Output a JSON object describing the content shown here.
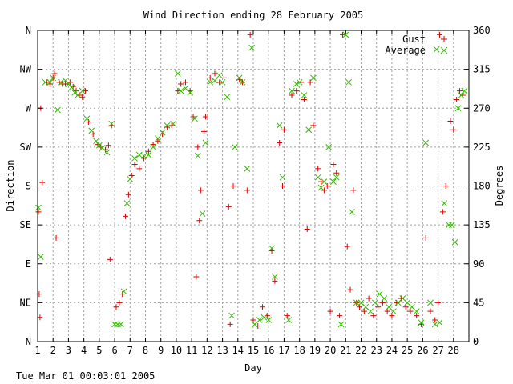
{
  "chart_data": {
    "type": "scatter",
    "title": "Wind Direction ending 28 February 2005",
    "xlabel": "Day",
    "ylabel_left": "Direction",
    "ylabel_right": "Degrees",
    "xlim": [
      1,
      29
    ],
    "ylim": [
      0,
      360
    ],
    "x_ticks": [
      "1",
      "2",
      "3",
      "4",
      "5",
      "6",
      "7",
      "8",
      "9",
      "10",
      "11",
      "12",
      "13",
      "14",
      "15",
      "16",
      "17",
      "18",
      "19",
      "20",
      "21",
      "22",
      "23",
      "24",
      "25",
      "26",
      "27",
      "28"
    ],
    "left_ticks": [
      {
        "label": "N",
        "deg": 0
      },
      {
        "label": "NE",
        "deg": 45
      },
      {
        "label": "E",
        "deg": 90
      },
      {
        "label": "SE",
        "deg": 135
      },
      {
        "label": "S",
        "deg": 180
      },
      {
        "label": "SW",
        "deg": 225
      },
      {
        "label": "W",
        "deg": 270
      },
      {
        "label": "NW",
        "deg": 315
      },
      {
        "label": "N",
        "deg": 360
      }
    ],
    "right_ticks": [
      "0",
      "45",
      "90",
      "135",
      "180",
      "225",
      "270",
      "315",
      "360"
    ],
    "grid": true,
    "legend_position": "top-right",
    "series": [
      {
        "name": "Gust",
        "marker": "plus",
        "color": "#dd0000",
        "points": [
          [
            1.05,
            150
          ],
          [
            1.1,
            55
          ],
          [
            1.15,
            28
          ],
          [
            1.2,
            270
          ],
          [
            1.3,
            184
          ],
          [
            1.6,
            300
          ],
          [
            1.8,
            298
          ],
          [
            2.0,
            305
          ],
          [
            2.1,
            310
          ],
          [
            2.2,
            120
          ],
          [
            2.4,
            300
          ],
          [
            2.6,
            298
          ],
          [
            2.8,
            298
          ],
          [
            3.1,
            300
          ],
          [
            3.3,
            295
          ],
          [
            3.5,
            290
          ],
          [
            3.7,
            285
          ],
          [
            3.9,
            283
          ],
          [
            4.1,
            290
          ],
          [
            4.3,
            254
          ],
          [
            4.6,
            240
          ],
          [
            4.9,
            228
          ],
          [
            5.1,
            225
          ],
          [
            5.4,
            222
          ],
          [
            5.6,
            227
          ],
          [
            5.8,
            250
          ],
          [
            5.7,
            95
          ],
          [
            6.1,
            40
          ],
          [
            6.3,
            45
          ],
          [
            6.5,
            55
          ],
          [
            6.7,
            145
          ],
          [
            6.9,
            170
          ],
          [
            7.1,
            192
          ],
          [
            7.3,
            205
          ],
          [
            7.6,
            200
          ],
          [
            7.9,
            212
          ],
          [
            8.2,
            220
          ],
          [
            8.5,
            228
          ],
          [
            8.8,
            232
          ],
          [
            9.1,
            240
          ],
          [
            9.4,
            248
          ],
          [
            9.7,
            250
          ],
          [
            10.1,
            290
          ],
          [
            10.3,
            298
          ],
          [
            10.6,
            300
          ],
          [
            10.9,
            290
          ],
          [
            11.1,
            260
          ],
          [
            11.3,
            75
          ],
          [
            11.4,
            225
          ],
          [
            11.5,
            140
          ],
          [
            11.6,
            175
          ],
          [
            11.8,
            243
          ],
          [
            11.9,
            260
          ],
          [
            12.2,
            305
          ],
          [
            12.5,
            310
          ],
          [
            12.8,
            300
          ],
          [
            13.1,
            305
          ],
          [
            13.4,
            156
          ],
          [
            13.5,
            20
          ],
          [
            13.7,
            180
          ],
          [
            14.1,
            303
          ],
          [
            14.3,
            300
          ],
          [
            14.6,
            175
          ],
          [
            14.8,
            355
          ],
          [
            15.0,
            25
          ],
          [
            15.3,
            18
          ],
          [
            15.6,
            40
          ],
          [
            15.9,
            30
          ],
          [
            16.2,
            105
          ],
          [
            16.4,
            70
          ],
          [
            16.7,
            230
          ],
          [
            16.9,
            180
          ],
          [
            17.0,
            245
          ],
          [
            17.2,
            30
          ],
          [
            17.5,
            285
          ],
          [
            17.8,
            290
          ],
          [
            18.1,
            300
          ],
          [
            18.3,
            280
          ],
          [
            18.5,
            130
          ],
          [
            18.7,
            300
          ],
          [
            18.9,
            250
          ],
          [
            19.2,
            200
          ],
          [
            19.4,
            185
          ],
          [
            19.6,
            175
          ],
          [
            19.8,
            180
          ],
          [
            20.0,
            35
          ],
          [
            20.2,
            205
          ],
          [
            20.4,
            195
          ],
          [
            20.6,
            30
          ],
          [
            20.8,
            355
          ],
          [
            21.1,
            110
          ],
          [
            21.3,
            60
          ],
          [
            21.5,
            175
          ],
          [
            21.7,
            45
          ],
          [
            21.9,
            40
          ],
          [
            22.2,
            35
          ],
          [
            22.5,
            50
          ],
          [
            22.8,
            30
          ],
          [
            23.1,
            40
          ],
          [
            23.4,
            45
          ],
          [
            23.7,
            35
          ],
          [
            24.0,
            30
          ],
          [
            24.3,
            45
          ],
          [
            24.6,
            50
          ],
          [
            24.9,
            40
          ],
          [
            25.2,
            35
          ],
          [
            25.6,
            30
          ],
          [
            25.9,
            20
          ],
          [
            26.2,
            120
          ],
          [
            26.5,
            35
          ],
          [
            26.8,
            25
          ],
          [
            27.0,
            45
          ],
          [
            27.3,
            150
          ],
          [
            27.5,
            180
          ],
          [
            27.8,
            255
          ],
          [
            28.0,
            245
          ],
          [
            28.2,
            280
          ],
          [
            28.4,
            290
          ],
          [
            28.6,
            285
          ],
          [
            27.1,
            355
          ]
        ]
      },
      {
        "name": "Average",
        "marker": "x",
        "color": "#33bb00",
        "points": [
          [
            1.05,
            155
          ],
          [
            1.2,
            98
          ],
          [
            1.5,
            300
          ],
          [
            1.8,
            300
          ],
          [
            2.0,
            305
          ],
          [
            2.3,
            268
          ],
          [
            2.5,
            300
          ],
          [
            2.8,
            302
          ],
          [
            3.0,
            298
          ],
          [
            3.2,
            294
          ],
          [
            3.4,
            288
          ],
          [
            3.6,
            285
          ],
          [
            3.9,
            290
          ],
          [
            4.2,
            258
          ],
          [
            4.5,
            244
          ],
          [
            4.8,
            232
          ],
          [
            5.0,
            227
          ],
          [
            5.2,
            224
          ],
          [
            5.5,
            219
          ],
          [
            5.8,
            252
          ],
          [
            6.0,
            20
          ],
          [
            6.2,
            20
          ],
          [
            6.4,
            20
          ],
          [
            6.6,
            58
          ],
          [
            6.8,
            160
          ],
          [
            7.0,
            188
          ],
          [
            7.3,
            212
          ],
          [
            7.6,
            216
          ],
          [
            7.9,
            215
          ],
          [
            8.2,
            216
          ],
          [
            8.5,
            225
          ],
          [
            8.8,
            235
          ],
          [
            9.1,
            242
          ],
          [
            9.4,
            250
          ],
          [
            9.8,
            252
          ],
          [
            10.1,
            310
          ],
          [
            10.3,
            290
          ],
          [
            10.6,
            293
          ],
          [
            10.9,
            288
          ],
          [
            11.2,
            258
          ],
          [
            11.4,
            215
          ],
          [
            11.7,
            148
          ],
          [
            11.9,
            230
          ],
          [
            12.2,
            300
          ],
          [
            12.5,
            302
          ],
          [
            12.8,
            308
          ],
          [
            13.0,
            300
          ],
          [
            13.3,
            283
          ],
          [
            13.6,
            30
          ],
          [
            13.8,
            225
          ],
          [
            14.1,
            305
          ],
          [
            14.3,
            300
          ],
          [
            14.6,
            200
          ],
          [
            14.9,
            340
          ],
          [
            15.1,
            20
          ],
          [
            15.4,
            25
          ],
          [
            15.7,
            28
          ],
          [
            16.0,
            25
          ],
          [
            16.2,
            108
          ],
          [
            16.4,
            75
          ],
          [
            16.7,
            250
          ],
          [
            16.9,
            190
          ],
          [
            17.3,
            25
          ],
          [
            17.5,
            290
          ],
          [
            17.8,
            298
          ],
          [
            18.0,
            300
          ],
          [
            18.3,
            285
          ],
          [
            18.6,
            245
          ],
          [
            18.9,
            305
          ],
          [
            19.2,
            190
          ],
          [
            19.4,
            178
          ],
          [
            19.6,
            185
          ],
          [
            19.9,
            225
          ],
          [
            20.2,
            185
          ],
          [
            20.4,
            190
          ],
          [
            20.7,
            20
          ],
          [
            21.0,
            355
          ],
          [
            21.2,
            300
          ],
          [
            21.4,
            150
          ],
          [
            21.7,
            45
          ],
          [
            22.0,
            45
          ],
          [
            22.3,
            40
          ],
          [
            22.6,
            35
          ],
          [
            22.9,
            45
          ],
          [
            23.2,
            55
          ],
          [
            23.5,
            50
          ],
          [
            23.8,
            40
          ],
          [
            24.1,
            35
          ],
          [
            24.4,
            45
          ],
          [
            24.7,
            50
          ],
          [
            25.0,
            45
          ],
          [
            25.3,
            40
          ],
          [
            25.6,
            35
          ],
          [
            25.9,
            22
          ],
          [
            26.2,
            230
          ],
          [
            26.5,
            45
          ],
          [
            26.8,
            20
          ],
          [
            27.1,
            22
          ],
          [
            27.4,
            160
          ],
          [
            27.7,
            135
          ],
          [
            27.9,
            135
          ],
          [
            28.1,
            115
          ],
          [
            28.3,
            270
          ],
          [
            28.5,
            285
          ],
          [
            28.7,
            290
          ],
          [
            26.9,
            338
          ]
        ]
      }
    ]
  },
  "timestamp": "Tue Mar 01 00:03:01 2005"
}
